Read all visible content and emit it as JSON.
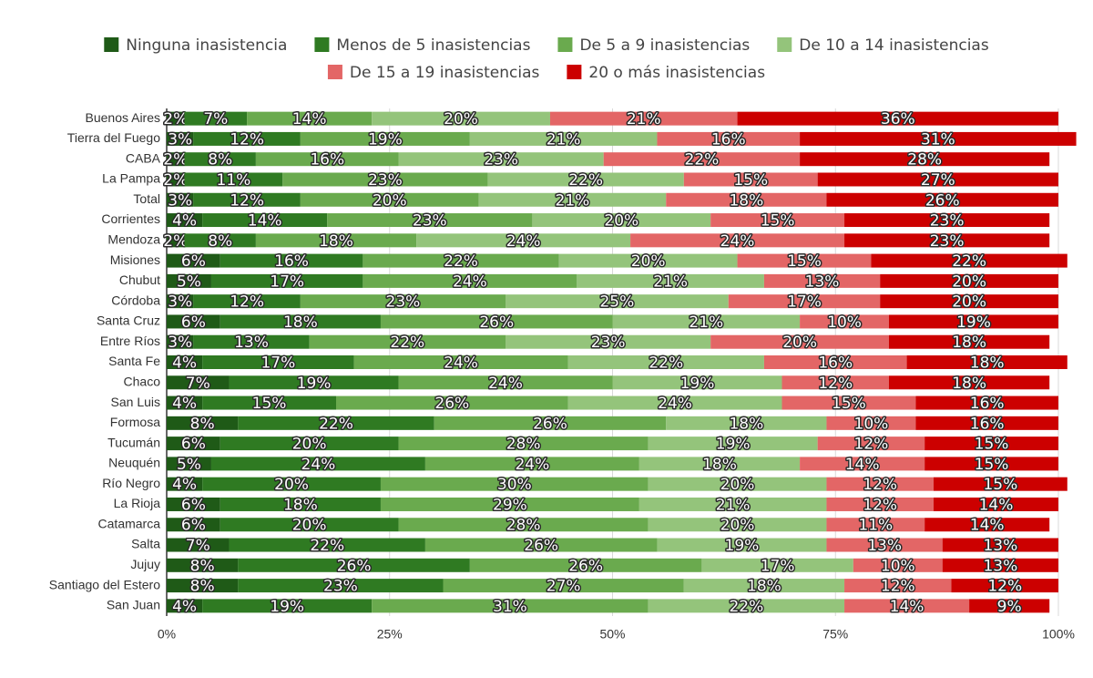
{
  "chart_data": {
    "type": "stacked-bar-horizontal",
    "categories": [
      "Buenos Aires",
      "Tierra del Fuego",
      "CABA",
      "La Pampa",
      "Total",
      "Corrientes",
      "Mendoza",
      "Misiones",
      "Chubut",
      "Córdoba",
      "Santa Cruz",
      "Entre Ríos",
      "Santa Fe",
      "Chaco",
      "San Luis",
      "Formosa",
      "Tucumán",
      "Neuquén",
      "Río Negro",
      "La Rioja",
      "Catamarca",
      "Salta",
      "Jujuy",
      "Santiago del Estero",
      "San Juan"
    ],
    "series": [
      {
        "name": "Ninguna inasistencia",
        "color": "#1f5a17",
        "values": [
          2,
          3,
          2,
          2,
          3,
          4,
          2,
          6,
          5,
          3,
          6,
          3,
          4,
          7,
          4,
          8,
          6,
          5,
          4,
          6,
          6,
          7,
          8,
          8,
          4
        ],
        "value_labels": [
          "2%",
          "3%",
          "2%",
          "2%",
          "3%",
          "4%",
          "2%",
          "6%",
          "5%",
          "3%",
          "6%",
          "3%",
          "4%",
          "7%",
          "4%",
          "8%",
          "6%",
          "5%",
          "4%",
          "6%",
          "6%",
          "7%",
          "8%",
          "8%",
          "4%"
        ]
      },
      {
        "name": "Menos de 5 inasistencias",
        "color": "#2f7a22",
        "values": [
          7,
          12,
          8,
          11,
          12,
          14,
          8,
          16,
          17,
          12,
          18,
          13,
          17,
          19,
          15,
          22,
          20,
          24,
          20,
          18,
          20,
          22,
          26,
          23,
          19
        ],
        "value_labels": [
          "7%",
          "12%",
          "8%",
          "11%",
          "12%",
          "14%",
          "8%",
          "16%",
          "17%",
          "12%",
          "18%",
          "13%",
          "17%",
          "19%",
          "15%",
          "22%",
          "20%",
          "24%",
          "20%",
          "18%",
          "20%",
          "22%",
          "26%",
          "23%",
          "19%"
        ]
      },
      {
        "name": "De 5 a 9 inasistencias",
        "color": "#6aaa4e",
        "values": [
          14,
          19,
          16,
          23,
          20,
          23,
          18,
          22,
          24,
          23,
          26,
          22,
          24,
          24,
          26,
          26,
          28,
          24,
          30,
          29,
          28,
          26,
          26,
          27,
          31
        ],
        "value_labels": [
          "14%",
          "19%",
          "16%",
          "23%",
          "20%",
          "23%",
          "18%",
          "22%",
          "24%",
          "23%",
          "26%",
          "22%",
          "24%",
          "24%",
          "26%",
          "26%",
          "28%",
          "24%",
          "30%",
          "29%",
          "28%",
          "26%",
          "26%",
          "27%",
          "31%"
        ]
      },
      {
        "name": "De 10 a 14 inasistencias",
        "color": "#94c47b",
        "values": [
          20,
          21,
          23,
          22,
          21,
          20,
          24,
          20,
          21,
          25,
          21,
          23,
          22,
          19,
          24,
          18,
          19,
          18,
          20,
          21,
          20,
          19,
          17,
          18,
          22
        ],
        "value_labels": [
          "20%",
          "21%",
          "23%",
          "22%",
          "21%",
          "20%",
          "24%",
          "20%",
          "21%",
          "25%",
          "21%",
          "23%",
          "22%",
          "19%",
          "24%",
          "18%",
          "19%",
          "18%",
          "20%",
          "21%",
          "20%",
          "19%",
          "17%",
          "18%",
          "22%"
        ]
      },
      {
        "name": "De 15 a 19 inasistencias",
        "color": "#e36666",
        "values": [
          21,
          16,
          22,
          15,
          18,
          15,
          24,
          15,
          13,
          17,
          10,
          20,
          16,
          12,
          15,
          10,
          12,
          14,
          12,
          12,
          11,
          13,
          10,
          12,
          14
        ],
        "value_labels": [
          "21%",
          "16%",
          "22%",
          "15%",
          "18%",
          "15%",
          "24%",
          "15%",
          "13%",
          "17%",
          "10%",
          "20%",
          "16%",
          "12%",
          "15%",
          "10%",
          "12%",
          "14%",
          "12%",
          "12%",
          "11%",
          "13%",
          "10%",
          "12%",
          "14%"
        ]
      },
      {
        "name": "20 o más inasistencias",
        "color": "#cc0000",
        "values": [
          36,
          31,
          28,
          27,
          26,
          23,
          23,
          22,
          20,
          20,
          19,
          18,
          18,
          18,
          16,
          16,
          15,
          15,
          15,
          14,
          14,
          13,
          13,
          12,
          9
        ],
        "value_labels": [
          "36%",
          "31%",
          "28%",
          "27%",
          "26%",
          "23%",
          "23%",
          "22%",
          "20%",
          "20%",
          "19%",
          "18%",
          "18%",
          "18%",
          "16%",
          "16%",
          "15%",
          "15%",
          "15%",
          "14%",
          "14%",
          "13%",
          "13%",
          "12%",
          "9%"
        ]
      }
    ],
    "xlim": [
      0,
      100
    ],
    "xticks": [
      {
        "value": 0,
        "label": "0%"
      },
      {
        "value": 25,
        "label": "25%"
      },
      {
        "value": 50,
        "label": "50%"
      },
      {
        "value": 75,
        "label": "75%"
      },
      {
        "value": 100,
        "label": "100%"
      }
    ],
    "grid": true
  }
}
